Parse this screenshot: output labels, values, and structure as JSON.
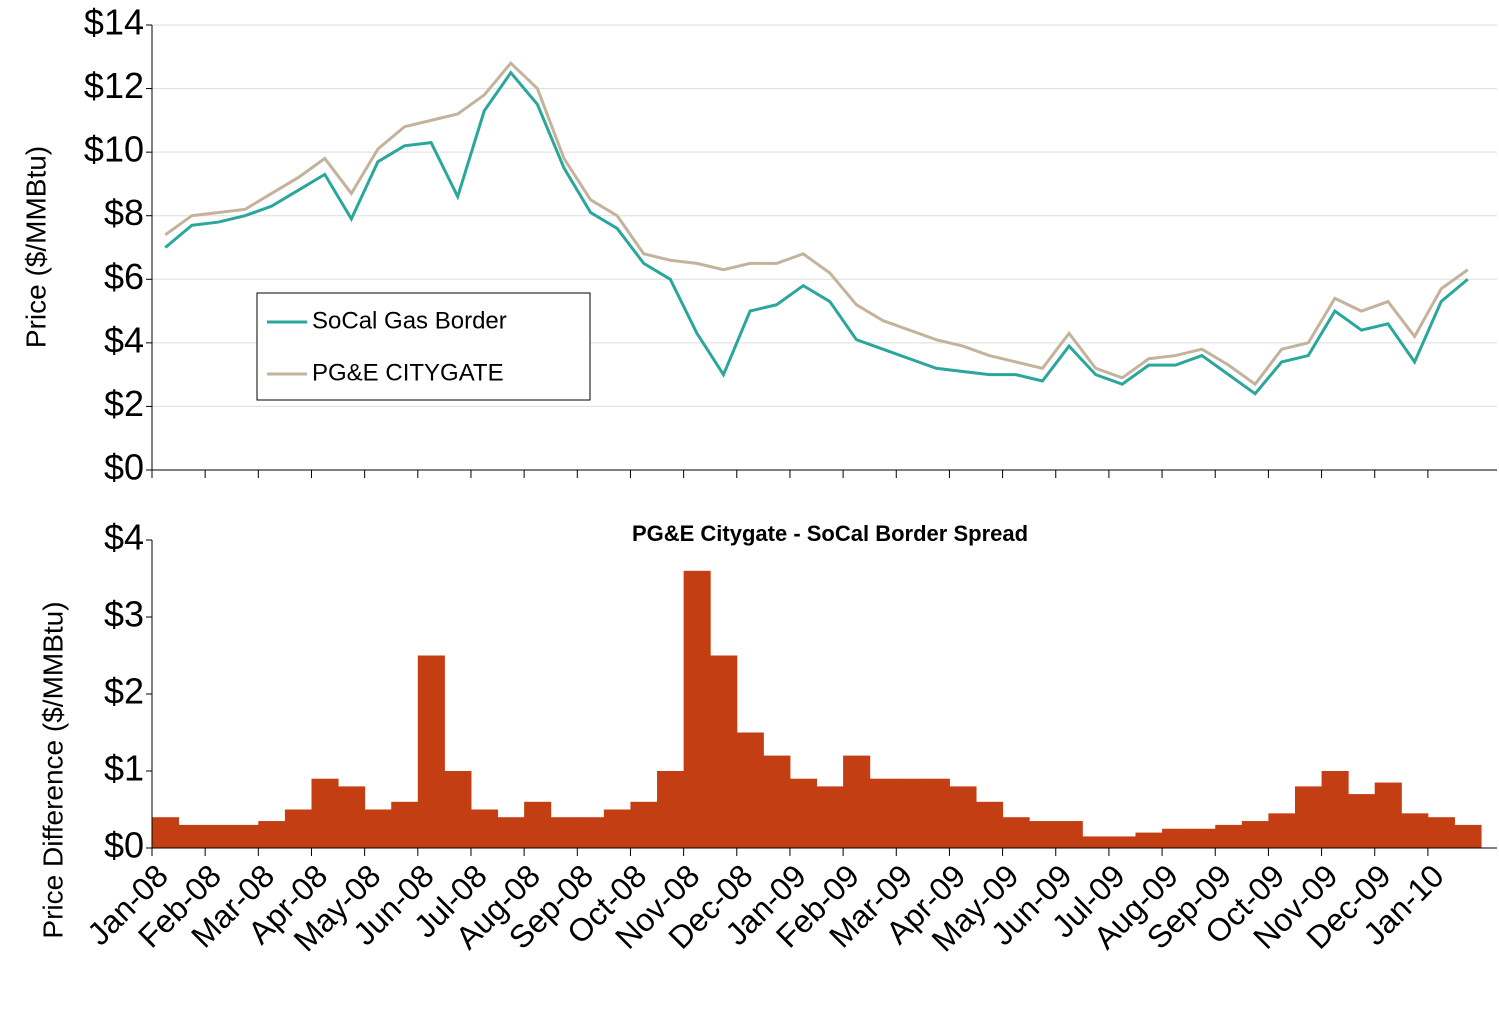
{
  "chart_data": [
    {
      "type": "line",
      "ylabel": "Price ($/MMBtu)",
      "ylim": [
        0,
        14
      ],
      "yticks": [
        {
          "value": 0,
          "label": "$0"
        },
        {
          "value": 2,
          "label": "$2"
        },
        {
          "value": 4,
          "label": "$4"
        },
        {
          "value": 6,
          "label": "$6"
        },
        {
          "value": 8,
          "label": "$8"
        },
        {
          "value": 10,
          "label": "$10"
        },
        {
          "value": 12,
          "label": "$12"
        },
        {
          "value": 14,
          "label": "$14"
        }
      ],
      "grid": true,
      "series": [
        {
          "name": "SoCal Gas Border",
          "color": "#2aa79b",
          "values": [
            7.0,
            7.7,
            7.8,
            8.0,
            8.3,
            8.8,
            9.3,
            7.9,
            9.7,
            10.2,
            10.3,
            8.6,
            11.3,
            12.5,
            11.5,
            9.5,
            8.1,
            7.6,
            6.5,
            6.0,
            4.3,
            3.0,
            5.0,
            5.2,
            5.8,
            5.3,
            4.1,
            3.8,
            3.5,
            3.2,
            3.1,
            3.0,
            3.0,
            2.8,
            3.9,
            3.0,
            2.7,
            3.3,
            3.3,
            3.6,
            3.0,
            2.4,
            3.4,
            3.6,
            5.0,
            4.4,
            4.6,
            3.4,
            5.3,
            6.0
          ]
        },
        {
          "name": "PG&E CITYGATE",
          "color": "#c4b39c",
          "values": [
            7.4,
            8.0,
            8.1,
            8.2,
            8.7,
            9.2,
            9.8,
            8.7,
            10.1,
            10.8,
            11.0,
            11.2,
            11.8,
            12.8,
            12.0,
            9.8,
            8.5,
            8.0,
            6.8,
            6.6,
            6.5,
            6.3,
            6.5,
            6.5,
            6.8,
            6.2,
            5.2,
            4.7,
            4.4,
            4.1,
            3.9,
            3.6,
            3.4,
            3.2,
            4.3,
            3.2,
            2.9,
            3.5,
            3.6,
            3.8,
            3.3,
            2.7,
            3.8,
            4.0,
            5.4,
            5.0,
            5.3,
            4.2,
            5.7,
            6.3
          ]
        }
      ]
    },
    {
      "type": "bar",
      "title": "PG&E Citygate - SoCal Border Spread",
      "ylabel": "Price Difference ($/MMBtu)",
      "ylim": [
        0,
        4
      ],
      "yticks": [
        {
          "value": 0,
          "label": "$0"
        },
        {
          "value": 1,
          "label": "$1"
        },
        {
          "value": 2,
          "label": "$2"
        },
        {
          "value": 3,
          "label": "$3"
        },
        {
          "value": 4,
          "label": "$4"
        }
      ],
      "color": "#c43e14",
      "categories": [
        "Jan-08",
        null,
        "Feb-08",
        null,
        "Mar-08",
        null,
        "Apr-08",
        null,
        "May-08",
        null,
        "Jun-08",
        null,
        "Jul-08",
        null,
        "Aug-08",
        null,
        "Sep-08",
        null,
        "Oct-08",
        null,
        "Nov-08",
        null,
        "Dec-08",
        null,
        "Jan-09",
        null,
        "Feb-09",
        null,
        "Mar-09",
        null,
        "Apr-09",
        null,
        "May-09",
        null,
        "Jun-09",
        null,
        "Jul-09",
        null,
        "Aug-09",
        null,
        "Sep-09",
        null,
        "Oct-09",
        null,
        "Nov-09",
        null,
        "Dec-09",
        null,
        "Jan-10",
        null
      ],
      "values": [
        0.4,
        0.3,
        0.3,
        0.3,
        0.35,
        0.5,
        0.9,
        0.8,
        0.5,
        0.6,
        2.5,
        1.0,
        0.5,
        0.4,
        0.6,
        0.4,
        0.4,
        0.5,
        0.6,
        1.0,
        3.6,
        2.5,
        1.5,
        1.2,
        0.9,
        0.8,
        1.2,
        0.9,
        0.9,
        0.9,
        0.8,
        0.6,
        0.4,
        0.35,
        0.35,
        0.15,
        0.15,
        0.2,
        0.25,
        0.25,
        0.3,
        0.35,
        0.45,
        0.8,
        1.0,
        0.7,
        0.85,
        0.45,
        0.4,
        0.3
      ]
    }
  ]
}
